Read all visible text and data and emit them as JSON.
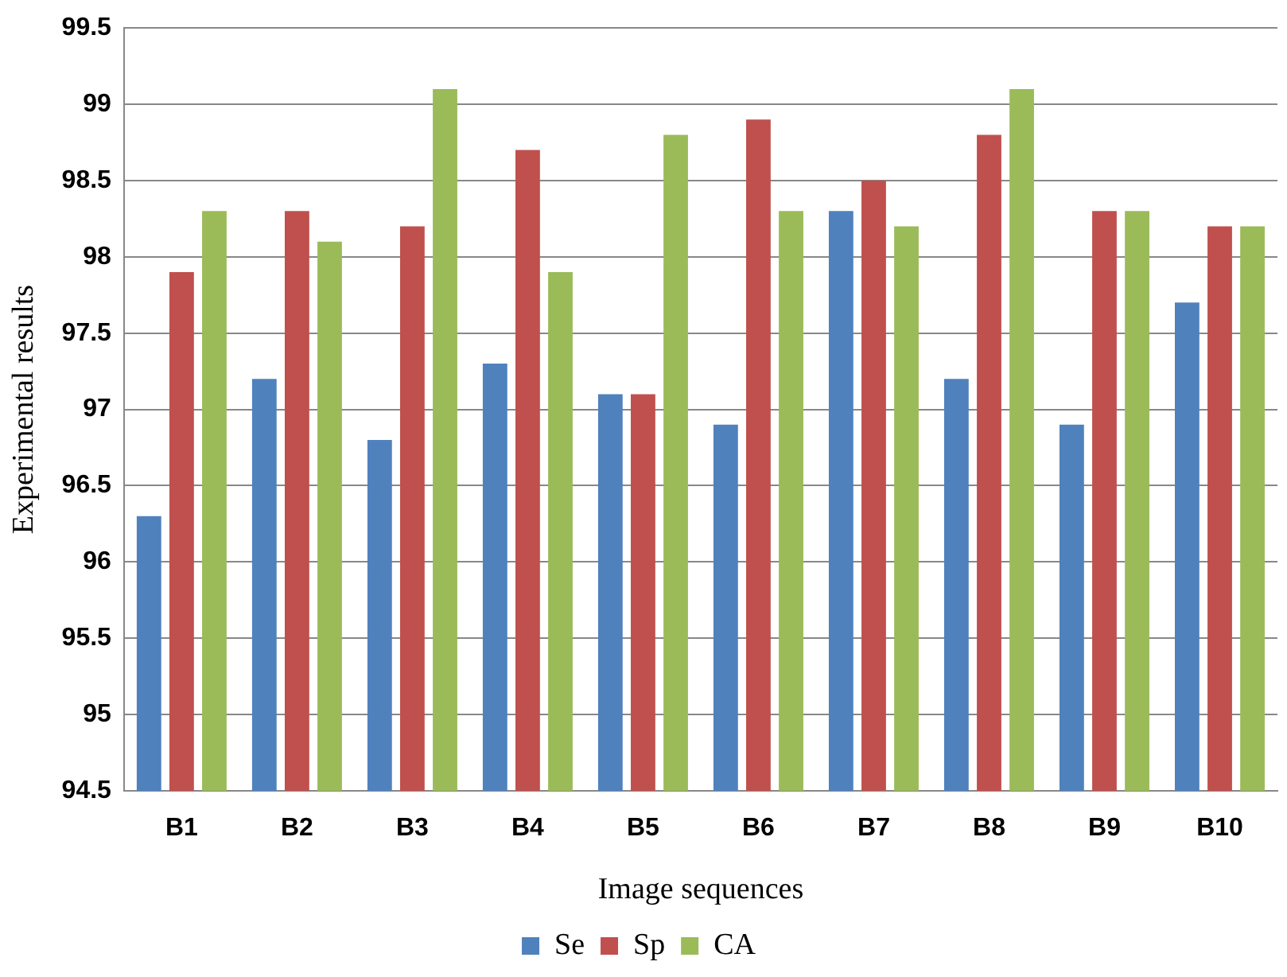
{
  "chart_data": {
    "type": "bar",
    "xlabel": "Image sequences",
    "ylabel": "Experimental results",
    "categories": [
      "B1",
      "B2",
      "B3",
      "B4",
      "B5",
      "B6",
      "B7",
      "B8",
      "B9",
      "B10"
    ],
    "series": [
      {
        "name": "Se",
        "color": "#4f81bd",
        "values": [
          96.3,
          97.2,
          96.8,
          97.3,
          97.1,
          96.9,
          98.3,
          97.2,
          96.9,
          97.7
        ]
      },
      {
        "name": "Sp",
        "color": "#c0504d",
        "values": [
          97.9,
          98.3,
          98.2,
          98.7,
          97.1,
          98.9,
          98.5,
          98.8,
          98.3,
          98.2
        ]
      },
      {
        "name": "CA",
        "color": "#9bbb59",
        "values": [
          98.3,
          98.1,
          99.1,
          97.9,
          98.8,
          98.3,
          98.2,
          99.1,
          98.3,
          98.2
        ]
      }
    ],
    "ylim": [
      94.5,
      99.5
    ],
    "yticks": [
      94.5,
      95,
      95.5,
      96,
      96.5,
      97,
      97.5,
      98,
      98.5,
      99,
      99.5
    ],
    "grid": "y",
    "legend": "bottom"
  }
}
